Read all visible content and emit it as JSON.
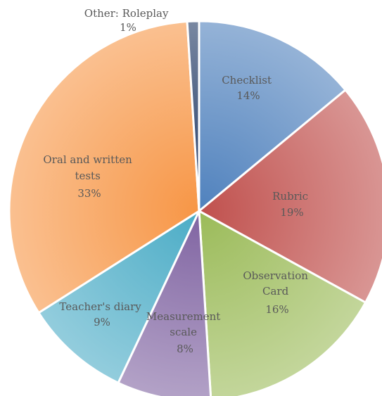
{
  "chart_data": {
    "type": "pie",
    "title": "",
    "categories": [
      "Checklist",
      "Rubric",
      "Observation Card",
      "Measurement scale",
      "Teacher's diary",
      "Oral and written tests",
      "Other: Roleplay"
    ],
    "values": [
      14,
      19,
      16,
      8,
      9,
      33,
      1
    ],
    "value_labels": [
      "14%",
      "19%",
      "16%",
      "8%",
      "9%",
      "33%",
      "1%"
    ],
    "colors": [
      "#4f81bd",
      "#c0504d",
      "#9bbb59",
      "#8064a2",
      "#4bacc6",
      "#f79646",
      "#1f3864"
    ],
    "legend": "none",
    "data_labels": "category and percent on slices"
  }
}
